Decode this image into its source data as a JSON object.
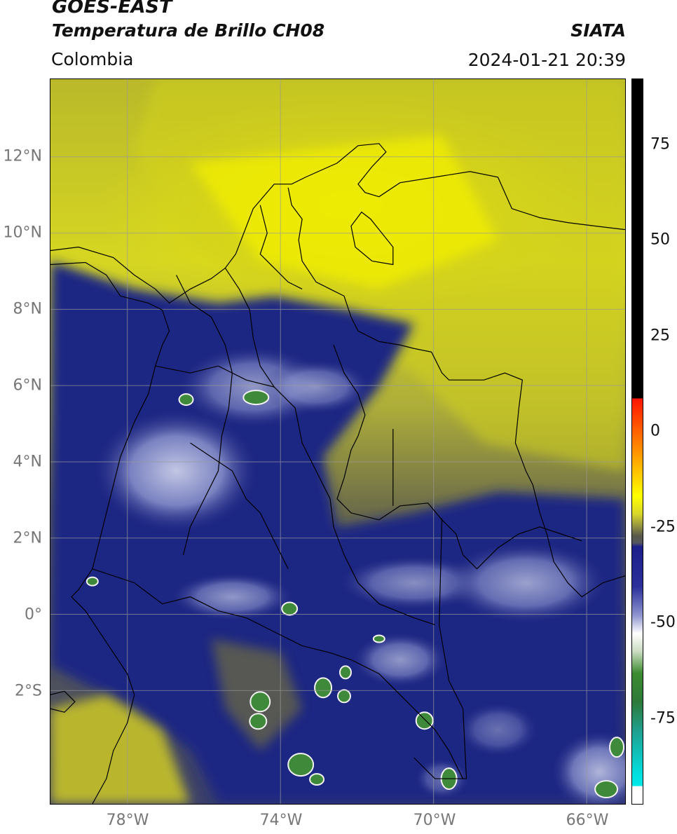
{
  "header": {
    "satellite": "GOES-EAST",
    "product": "Temperatura de Brillo CH08",
    "organization": "SIATA",
    "region": "Colombia",
    "datetime": "2024-01-21 20:39"
  },
  "map": {
    "lat_ticks": [
      "12°N",
      "10°N",
      "8°N",
      "6°N",
      "4°N",
      "2°N",
      "0°",
      "2°S"
    ],
    "lon_ticks": [
      "78°W",
      "74°W",
      "70°W",
      "66°W"
    ],
    "gridlines": true
  },
  "colorbar": {
    "ticks": [
      "75",
      "50",
      "25",
      "0",
      "-25",
      "-50",
      "-75"
    ]
  }
}
